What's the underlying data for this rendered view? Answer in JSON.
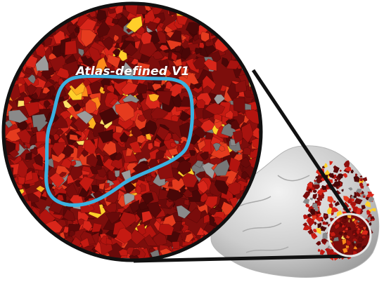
{
  "figure": {
    "label": "Atlas-defined V1"
  },
  "colors": {
    "roi_outline": "#3ab1e0",
    "zoom_ring": "#111111",
    "inset_ring": "#e6e6e6",
    "brain_surface": "#cfcfcf",
    "map_low": "#6a0a0a",
    "map_mid": "#d11d12",
    "map_high": "#ffcf2a",
    "unmapped": "#8a8a8a"
  }
}
